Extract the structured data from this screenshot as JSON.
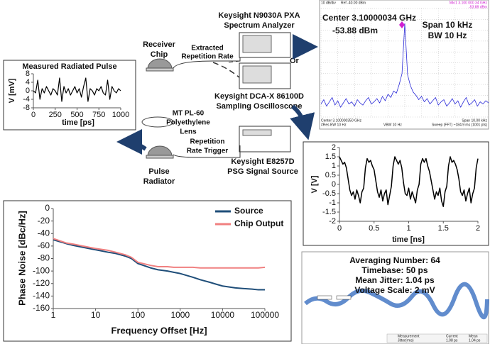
{
  "diagram": {
    "receiver_chip": [
      "Receiver",
      "Chip"
    ],
    "extracted_rate": [
      "Extracted",
      "Repetition Rate"
    ],
    "spectrum_analyzer": [
      "Keysight N9030A PXA",
      "Spectrum Analyzer"
    ],
    "or": "Or",
    "oscilloscope": [
      "Keysight DCA-X 86100D",
      "Sampling Oscilloscope"
    ],
    "lens": [
      "MT PL-60",
      "Polyethylene",
      "Lens"
    ],
    "trigger": [
      "Repetition",
      "Rate Trigger"
    ],
    "signal_source": [
      "Keysight E8257D",
      "PSG Signal Source"
    ],
    "pulse_radiator": [
      "Pulse",
      "Radiator"
    ]
  },
  "dca_screen": {
    "lines": [
      "Averaging Number: 64",
      "Timebase: 50 ps",
      "Mean Jitter: 1.04 ps",
      "Voltage Scale: 2 mV"
    ],
    "table_header": [
      "Measurement",
      "Current",
      "Mean"
    ],
    "table_row": [
      "Jitter(rms)",
      "1.08 ps",
      "1.04 ps"
    ]
  },
  "chart_data": [
    {
      "type": "line",
      "title": "Measured Radiated Pulse",
      "xlabel": "time [ps]",
      "ylabel": "V [mV]",
      "color": "#000000",
      "x": [
        0,
        25,
        50,
        75,
        100,
        125,
        150,
        175,
        200,
        225,
        250,
        275,
        300,
        325,
        350,
        375,
        400,
        425,
        450,
        475,
        500,
        525,
        550,
        575,
        600,
        625,
        650,
        675,
        700,
        725,
        750,
        775,
        800,
        825,
        850,
        875,
        900,
        925,
        950,
        975,
        1000
      ],
      "values": [
        0,
        -1,
        5,
        -4,
        1,
        -1,
        2,
        0,
        -2,
        1,
        0,
        -2,
        6,
        -5,
        2,
        -1,
        1,
        -2,
        0,
        2,
        -1,
        1,
        -3,
        2,
        6,
        -5,
        1,
        0,
        -2,
        1,
        0,
        2,
        -1,
        -2,
        5,
        -4,
        2,
        0,
        -1,
        1,
        0
      ],
      "xlim": [
        0,
        1000
      ],
      "ylim": [
        -8,
        8
      ],
      "xticks": [
        0,
        250,
        500,
        750,
        1000
      ],
      "yticks": [
        -8,
        -4,
        0,
        4,
        8
      ]
    },
    {
      "type": "line",
      "color": "#2a2ad8",
      "header": {
        "scale": "10 dB/div",
        "ref": "Ref -40.00 dBm",
        "marker": "Mkr1 3.100 000 34 GHz",
        "marker_value": "-53.88 dBm"
      },
      "annotations": [
        "Center 3.10000034 GHz",
        "-53.88 dBm",
        "Span 10 kHz",
        "BW 10 Hz"
      ],
      "footer": [
        "Center 3.100000350 GHz",
        "#Res BW 10 Hz",
        "VBW 10 Hz",
        "Span 10.00 kHz",
        "Sweep (FFT) ~184.9 ms (1001 pts)"
      ],
      "values": [
        -128,
        -124,
        -130,
        -126,
        -122,
        -129,
        -125,
        -131,
        -127,
        -123,
        -128,
        -126,
        -130,
        -124,
        -127,
        -129,
        -125,
        -122,
        -128,
        -126,
        -123,
        -127,
        -121,
        -125,
        -119,
        -122,
        -116,
        -118,
        -110,
        -100,
        -53.88,
        -101,
        -111,
        -117,
        -120,
        -124,
        -121,
        -126,
        -123,
        -128,
        -125,
        -122,
        -129,
        -126,
        -124,
        -130,
        -127,
        -123,
        -128,
        -125,
        -131,
        -126,
        -122,
        -129,
        -127,
        -124,
        -130,
        -126,
        -128,
        -125,
        -127
      ],
      "ylim": [
        -140,
        -40
      ]
    },
    {
      "type": "line",
      "xlabel": "time [ns]",
      "ylabel": "V [V]",
      "color": "#000000",
      "x": [
        0,
        0.025,
        0.05,
        0.075,
        0.1,
        0.125,
        0.15,
        0.175,
        0.2,
        0.225,
        0.25,
        0.275,
        0.3,
        0.325,
        0.35,
        0.375,
        0.4,
        0.425,
        0.45,
        0.475,
        0.5,
        0.525,
        0.55,
        0.575,
        0.6,
        0.625,
        0.65,
        0.675,
        0.7,
        0.725,
        0.75,
        0.775,
        0.8,
        0.825,
        0.85,
        0.875,
        0.9,
        0.925,
        0.95,
        0.975,
        1,
        1.025,
        1.05,
        1.075,
        1.1,
        1.125,
        1.15,
        1.175,
        1.2,
        1.225,
        1.25,
        1.275,
        1.3,
        1.325,
        1.35,
        1.375,
        1.4,
        1.425,
        1.45,
        1.475,
        1.5,
        1.525,
        1.55,
        1.575,
        1.6,
        1.625,
        1.65,
        1.675,
        1.7,
        1.725,
        1.75,
        1.775,
        1.8,
        1.825,
        1.85,
        1.875,
        1.9,
        1.925,
        1.95,
        1.975,
        2
      ],
      "values": [
        1.5,
        1.3,
        1.1,
        1.2,
        0.9,
        0.3,
        -0.3,
        -0.6,
        -0.4,
        -0.8,
        -0.3,
        -0.6,
        -1.0,
        -0.4,
        -0.2,
        0.9,
        1.4,
        1.2,
        1.3,
        1.0,
        0.8,
        0.2,
        -0.4,
        -0.7,
        -0.3,
        -0.9,
        -0.5,
        -0.3,
        -1.1,
        -0.6,
        -0.1,
        1.0,
        1.5,
        1.3,
        1.1,
        1.3,
        0.9,
        0.1,
        -0.5,
        -0.6,
        -0.2,
        -0.8,
        -0.4,
        -0.7,
        -1.0,
        -0.3,
        0.0,
        1.1,
        1.4,
        1.2,
        1.4,
        1.0,
        0.7,
        0.2,
        -0.3,
        -0.8,
        -0.4,
        -0.6,
        -0.2,
        -0.9,
        -1.2,
        -0.4,
        -0.1,
        1.0,
        1.5,
        1.2,
        1.3,
        1.1,
        0.8,
        0.3,
        -0.4,
        -0.6,
        -0.3,
        -0.9,
        -0.5,
        -0.2,
        -1.0,
        -0.5,
        -0.2,
        0.9,
        1.4
      ],
      "xlim": [
        0,
        2
      ],
      "ylim": [
        -2,
        2
      ],
      "xticks": [
        0,
        0.5,
        1,
        1.5,
        2
      ],
      "yticks": [
        -2,
        -1.5,
        -1,
        -0.5,
        0,
        0.5,
        1,
        1.5,
        2
      ]
    },
    {
      "type": "line",
      "xlabel": "Frequency Offset [Hz]",
      "ylabel": "Phase Noise [dBc/Hz]",
      "log_x": true,
      "legend": "top-right",
      "x": [
        1,
        2,
        3,
        5,
        7,
        10,
        20,
        30,
        50,
        70,
        100,
        200,
        300,
        500,
        700,
        1000,
        2000,
        3000,
        5000,
        7000,
        10000,
        20000,
        30000,
        50000,
        70000,
        100000
      ],
      "series": [
        {
          "name": "Source",
          "color": "#1f4e79",
          "values": [
            -50,
            -56,
            -59,
            -62,
            -64,
            -66,
            -70,
            -72,
            -76,
            -80,
            -88,
            -95,
            -98,
            -100,
            -102,
            -104,
            -110,
            -114,
            -118,
            -121,
            -124,
            -127,
            -128,
            -129,
            -130,
            -130
          ]
        },
        {
          "name": "Chip Output",
          "color": "#f08080",
          "values": [
            -48,
            -55,
            -57,
            -60,
            -62,
            -64,
            -67,
            -70,
            -74,
            -78,
            -86,
            -91,
            -93,
            -93,
            -94,
            -94,
            -94,
            -95,
            -95,
            -95,
            -95,
            -95,
            -95,
            -95,
            -95,
            -94
          ]
        }
      ],
      "xlim": [
        1,
        100000
      ],
      "ylim": [
        -160,
        0
      ],
      "xticks": [
        1,
        10,
        100,
        1000,
        10000,
        100000
      ],
      "yticks": [
        -160,
        -140,
        -120,
        -100,
        -80,
        -60,
        -40,
        -20,
        0
      ]
    }
  ]
}
